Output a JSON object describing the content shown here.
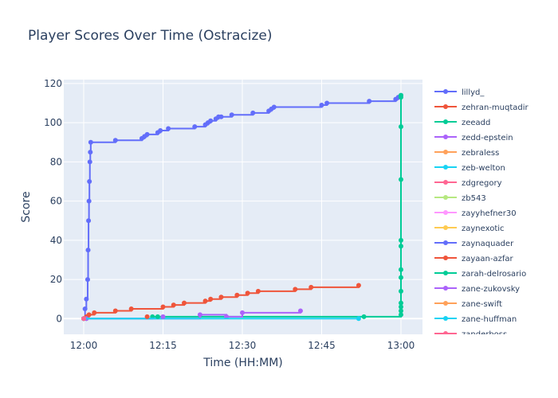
{
  "chart_data": {
    "type": "line",
    "title": "Player Scores Over Time (Ostracize)",
    "xlabel": "Time (HH:MM)",
    "ylabel": "Score",
    "xlim": [
      "12:00",
      "13:00"
    ],
    "ylim": [
      -8,
      122
    ],
    "x_ticks": [
      "12:00",
      "12:15",
      "12:30",
      "12:45",
      "13:00"
    ],
    "y_ticks": [
      0,
      20,
      40,
      60,
      80,
      100,
      120
    ],
    "line_shape": "step",
    "grid": true,
    "legend_position": "right",
    "series": [
      {
        "name": "lillyd_",
        "color": "#636efa",
        "x": [
          "12:00:00",
          "12:00:15",
          "12:00:30",
          "12:00:45",
          "12:00:50",
          "12:00:55",
          "12:01:00",
          "12:01:05",
          "12:01:10",
          "12:01:15",
          "12:01:20",
          "12:06:00",
          "12:11:00",
          "12:11:30",
          "12:12:00",
          "12:14:00",
          "12:14:30",
          "12:16:00",
          "12:21:00",
          "12:23:00",
          "12:23:30",
          "12:24:00",
          "12:25:00",
          "12:25:30",
          "12:26:00",
          "12:28:00",
          "12:32:00",
          "12:35:00",
          "12:35:30",
          "12:36:00",
          "12:45:00",
          "12:46:00",
          "12:54:00",
          "12:59:00",
          "12:59:30",
          "13:00:00"
        ],
        "values": [
          0,
          5,
          10,
          20,
          35,
          50,
          60,
          70,
          80,
          85,
          90,
          91,
          92,
          93,
          94,
          95,
          96,
          97,
          98,
          99,
          100,
          101,
          102,
          103,
          103,
          104,
          105,
          106,
          107,
          108,
          109,
          110,
          111,
          112,
          113,
          114
        ]
      },
      {
        "name": "zehran-muqtadir",
        "color": "#ef553b",
        "x": [
          "12:00:30",
          "12:01:00",
          "12:02:00",
          "12:06:00",
          "12:09:00",
          "12:15:00",
          "12:17:00",
          "12:19:00",
          "12:23:00",
          "12:24:00",
          "12:26:00",
          "12:29:00",
          "12:31:00",
          "12:33:00",
          "12:40:00",
          "12:43:00",
          "12:52:00"
        ],
        "values": [
          1,
          2,
          3,
          4,
          5,
          6,
          7,
          8,
          9,
          10,
          11,
          12,
          13,
          14,
          15,
          16,
          17
        ]
      },
      {
        "name": "zeeadd",
        "color": "#00cc96",
        "x": [
          "12:00:30",
          "12:13:00",
          "12:53:00",
          "13:00:00",
          "13:00:00",
          "13:00:00",
          "13:00:00",
          "13:00:00",
          "13:00:00",
          "13:00:00",
          "13:00:00",
          "13:00:00",
          "13:00:00",
          "13:00:00",
          "13:00:00",
          "13:00:00"
        ],
        "values": [
          0,
          1,
          1,
          2,
          4,
          6,
          8,
          14,
          21,
          25,
          37,
          40,
          71,
          98,
          113,
          114
        ]
      },
      {
        "name": "zedd-epstein",
        "color": "#ab63fa",
        "x": [
          "12:00:30",
          "12:22:00",
          "12:27:00",
          "12:30:00",
          "12:41:00"
        ],
        "values": [
          0,
          2,
          1,
          3,
          4
        ]
      },
      {
        "name": "zebraless",
        "color": "#ffa15a",
        "x": [
          "12:00:00"
        ],
        "values": [
          0
        ]
      },
      {
        "name": "zeb-welton",
        "color": "#19d3f3",
        "x": [
          "12:00:00",
          "12:52:00"
        ],
        "values": [
          0,
          0
        ]
      },
      {
        "name": "zdgregory",
        "color": "#ff6692",
        "x": [
          "12:00:00"
        ],
        "values": [
          0
        ]
      },
      {
        "name": "zb543",
        "color": "#b6e880",
        "x": [
          "12:00:00"
        ],
        "values": [
          0
        ]
      },
      {
        "name": "zayyhefner30",
        "color": "#ff97ff",
        "x": [
          "12:00:00"
        ],
        "values": [
          0
        ]
      },
      {
        "name": "zaynexotic",
        "color": "#fecb52",
        "x": [
          "12:00:00"
        ],
        "values": [
          0
        ]
      },
      {
        "name": "zaynaquader",
        "color": "#636efa",
        "x": [
          "12:00:00"
        ],
        "values": [
          0
        ]
      },
      {
        "name": "zayaan-azfar",
        "color": "#ef553b",
        "x": [
          "12:12:00"
        ],
        "values": [
          1
        ]
      },
      {
        "name": "zarah-delrosario",
        "color": "#00cc96",
        "x": [
          "12:14:00"
        ],
        "values": [
          1
        ]
      },
      {
        "name": "zane-zukovsky",
        "color": "#ab63fa",
        "x": [
          "12:15:00"
        ],
        "values": [
          1
        ]
      },
      {
        "name": "zane-swift",
        "color": "#ffa15a",
        "x": [
          "12:00:00"
        ],
        "values": [
          0
        ]
      },
      {
        "name": "zane-huffman",
        "color": "#19d3f3",
        "x": [
          "12:00:00"
        ],
        "values": [
          0
        ]
      },
      {
        "name": "zanderboss",
        "color": "#ff6692",
        "x": [
          "12:00:00"
        ],
        "values": [
          0
        ]
      }
    ]
  }
}
